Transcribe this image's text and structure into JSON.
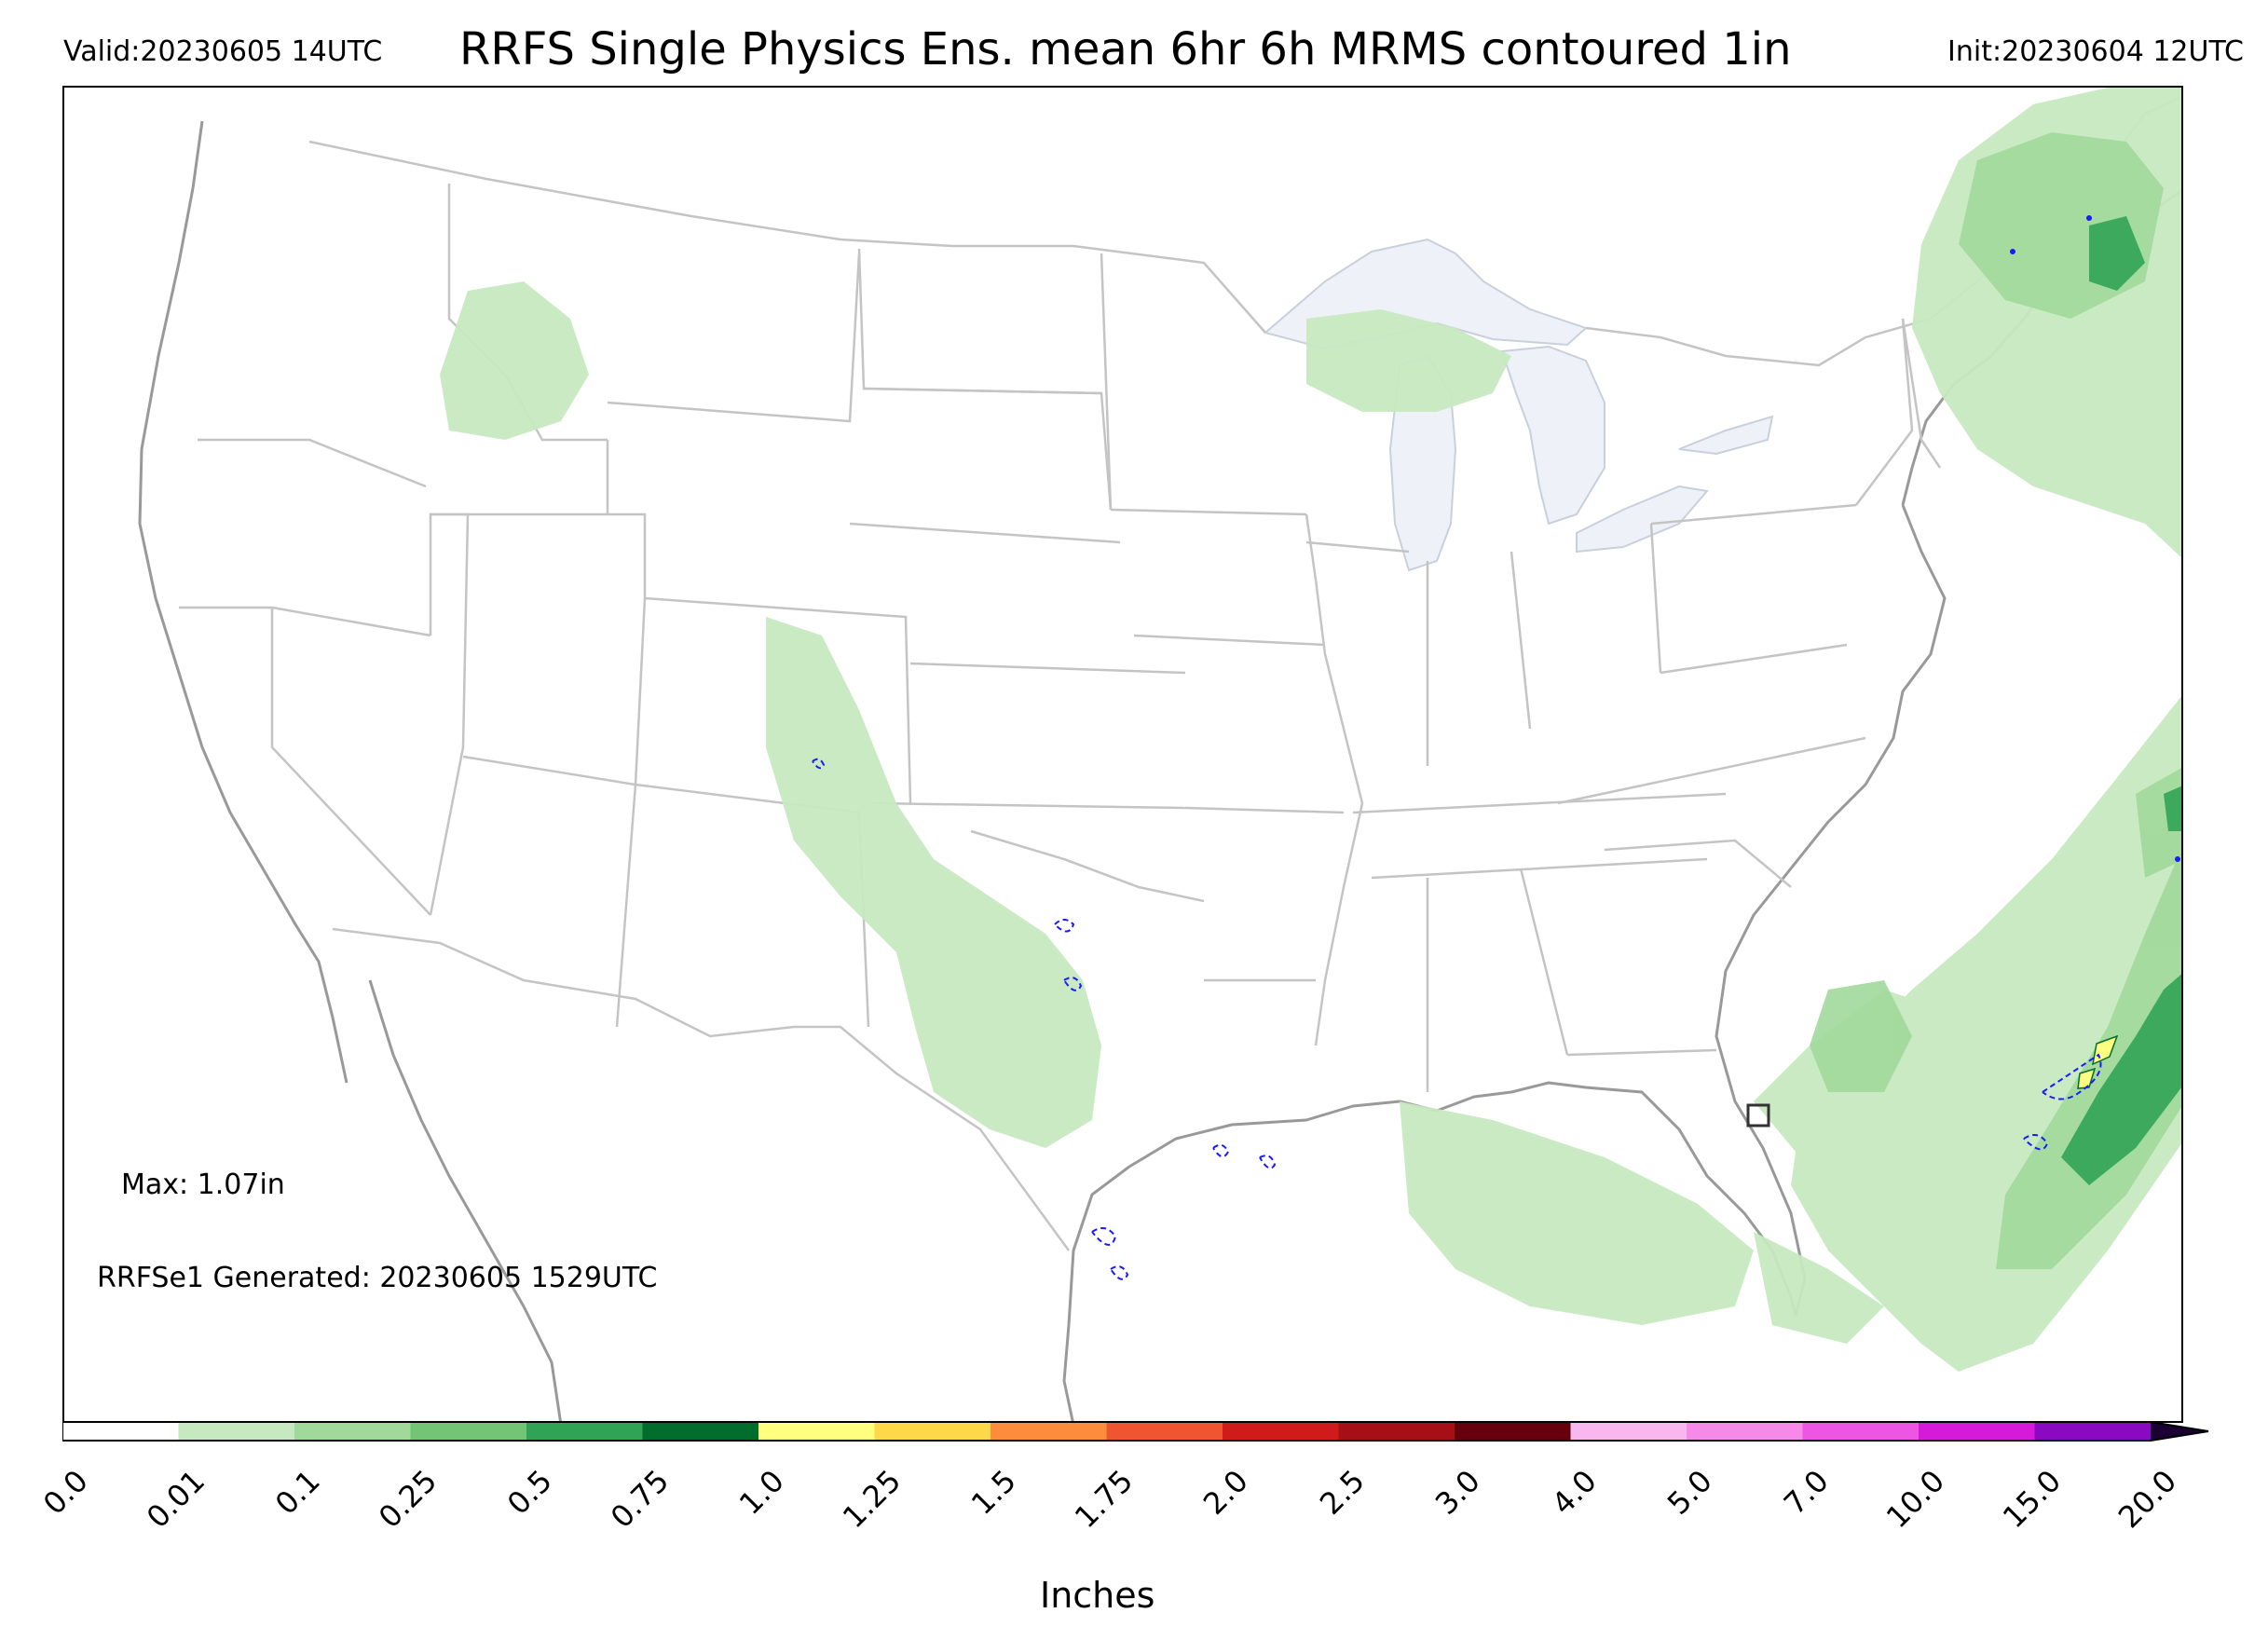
{
  "header": {
    "valid": "Valid:20230605 14UTC",
    "title": "RRFS Single Physics Ens. mean 6hr 6h MRMS contoured 1in",
    "init": "Init:20230604 12UTC"
  },
  "annotations": {
    "max": "Max: 1.07in",
    "generated": "RRFSe1 Generated: 20230605 1529UTC"
  },
  "colorbar": {
    "unit_label": "Inches",
    "tick_labels": [
      "0.0",
      "0.01",
      "0.1",
      "0.25",
      "0.5",
      "0.75",
      "1.0",
      "1.25",
      "1.5",
      "1.75",
      "2.0",
      "2.5",
      "3.0",
      "4.0",
      "5.0",
      "7.0",
      "10.0",
      "15.0",
      "20.0"
    ],
    "colors": [
      "#ffffff",
      "#c7e9c0",
      "#a1d99b",
      "#74c476",
      "#31a354",
      "#006d2c",
      "#ffff80",
      "#ffd84a",
      "#fd8d3c",
      "#f05532",
      "#d01b1b",
      "#a50f15",
      "#67000d",
      "#f9b7f0",
      "#f58ae9",
      "#ee55e2",
      "#d51ad9",
      "#8a0ac2"
    ],
    "extend": "max"
  },
  "map": {
    "projection": "CONUS Lambert conformal",
    "layers": [
      "state boundaries",
      "coastlines",
      "great lakes",
      "6h ensemble mean precipitation",
      "MRMS 1in contour"
    ],
    "precip_color_light": "#c7e9c0",
    "precip_color_mid": "#a1d99b",
    "precip_color_dark": "#31a354",
    "contour_color": "#1a1aff",
    "boundary_color": "#b5b5b5",
    "lake_color": "#eef2f8"
  }
}
